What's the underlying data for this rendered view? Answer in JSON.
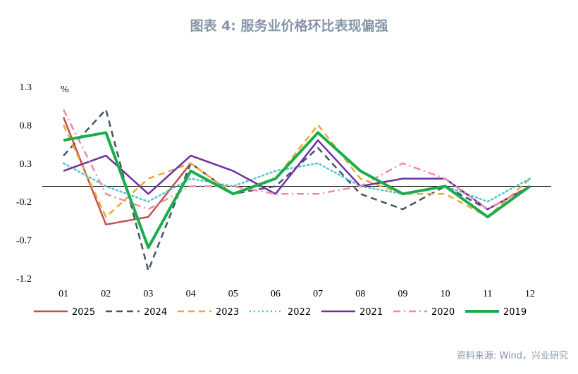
{
  "title": "图表 4:   服务业价格环比表现偏强",
  "source": "资料来源: Wind，兴业研究",
  "chart_data": {
    "type": "line",
    "unit": "%",
    "categories": [
      "01",
      "02",
      "03",
      "04",
      "05",
      "06",
      "07",
      "08",
      "09",
      "10",
      "11",
      "12"
    ],
    "ylim": [
      -1.2,
      1.3
    ],
    "yticks": [
      "1.3",
      "0.8",
      "0.3",
      "-0.2",
      "-0.7",
      "-1.2"
    ],
    "grid": false,
    "legend_position": "bottom",
    "series": [
      {
        "name": "2025",
        "color": "#c0504d",
        "dash": "solid",
        "width": 2.5,
        "values": [
          0.9,
          -0.5,
          -0.4,
          0.3,
          null,
          null,
          null,
          null,
          null,
          null,
          null,
          null
        ]
      },
      {
        "name": "2024",
        "color": "#44546a",
        "dash": "dash",
        "width": 2.5,
        "values": [
          0.4,
          1.0,
          -1.1,
          0.3,
          -0.1,
          0.0,
          0.5,
          -0.1,
          -0.3,
          0.0,
          -0.3,
          0.0
        ]
      },
      {
        "name": "2023",
        "color": "#f0a830",
        "dash": "dash",
        "width": 2.5,
        "values": [
          0.8,
          -0.4,
          0.1,
          0.3,
          -0.1,
          0.1,
          0.8,
          0.1,
          -0.1,
          -0.1,
          -0.4,
          0.1
        ]
      },
      {
        "name": "2022",
        "color": "#4fc4cf",
        "dash": "dot",
        "width": 2.5,
        "values": [
          0.3,
          0.0,
          -0.2,
          0.1,
          0.0,
          0.2,
          0.3,
          0.0,
          -0.1,
          0.0,
          -0.2,
          0.1
        ]
      },
      {
        "name": "2021",
        "color": "#7030a0",
        "dash": "solid",
        "width": 2.5,
        "values": [
          0.2,
          0.4,
          -0.1,
          0.4,
          0.2,
          -0.1,
          0.6,
          0.0,
          0.1,
          0.1,
          -0.3,
          0.0
        ]
      },
      {
        "name": "2020",
        "color": "#f08ca0",
        "dash": "dashdot",
        "width": 2.5,
        "values": [
          1.0,
          -0.1,
          -0.3,
          0.0,
          0.0,
          -0.1,
          -0.1,
          0.0,
          0.3,
          0.1,
          -0.3,
          0.0
        ]
      },
      {
        "name": "2019",
        "color": "#1aad4b",
        "dash": "solid",
        "width": 4,
        "values": [
          0.6,
          0.7,
          -0.8,
          0.2,
          -0.1,
          0.1,
          0.7,
          0.2,
          -0.1,
          0.0,
          -0.4,
          0.0
        ]
      }
    ]
  }
}
